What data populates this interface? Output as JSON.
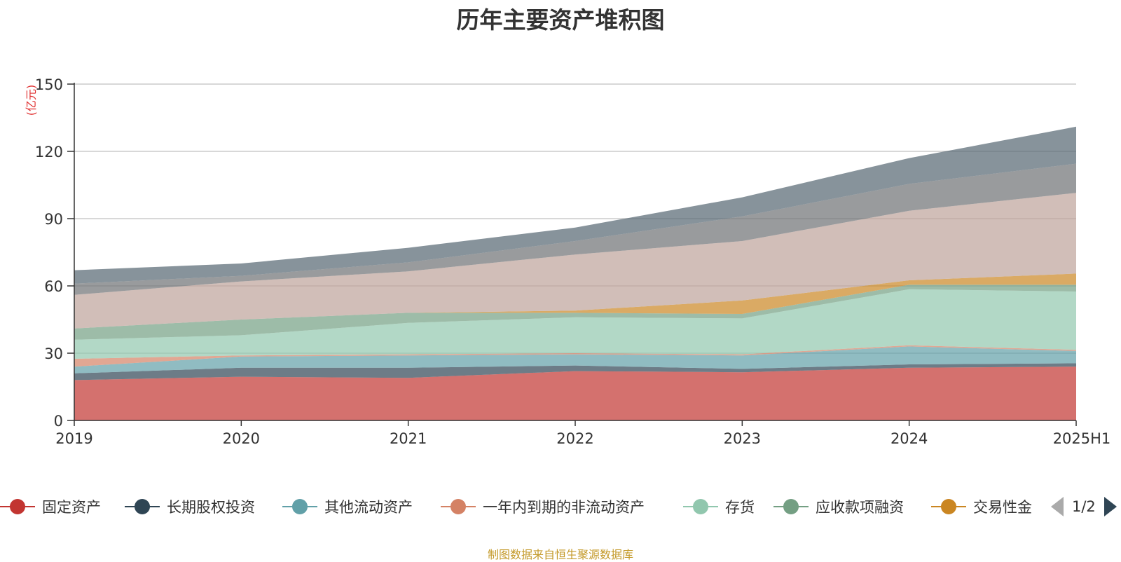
{
  "chart_data": {
    "type": "area",
    "title": "历年主要资产堆积图",
    "unit_label": "(亿元)",
    "stacked": true,
    "categories": [
      "2019",
      "2020",
      "2021",
      "2022",
      "2023",
      "2024",
      "2025H1"
    ],
    "yticks": [
      "0",
      "30",
      "60",
      "90",
      "120",
      "150"
    ],
    "ylim": [
      0,
      150
    ],
    "grid": true,
    "series": [
      {
        "name": "固定资产",
        "color": "#c23531",
        "values": [
          18,
          19.5,
          19,
          22,
          21.5,
          23.5,
          24
        ]
      },
      {
        "name": "长期股权投资",
        "color": "#2f4554",
        "values": [
          3,
          4,
          4.5,
          2.5,
          1.5,
          1.5,
          1.5
        ]
      },
      {
        "name": "其他流动资产",
        "color": "#61a0a8",
        "values": [
          3,
          5,
          5.5,
          5,
          6,
          8,
          5.5
        ]
      },
      {
        "name": "一年内到期的非流动资产",
        "color": "#d48265",
        "values": [
          3.5,
          0.5,
          0.5,
          0.5,
          0.5,
          0.5,
          0.5
        ]
      },
      {
        "name": "存货",
        "color": "#91c7ae",
        "values": [
          8.5,
          9,
          14,
          16,
          16,
          25,
          26
        ]
      },
      {
        "name": "应收款项融资",
        "color": "#749f83",
        "values": [
          5,
          7,
          4.5,
          2,
          2,
          2,
          3
        ]
      },
      {
        "name": "交易性金",
        "color": "#ca8622",
        "values": [
          0,
          0,
          0,
          1,
          6,
          2,
          5
        ]
      },
      {
        "name": "",
        "color": "#bda29a",
        "values": [
          15,
          17,
          18.5,
          25,
          26.5,
          31,
          36
        ]
      },
      {
        "name": "",
        "color": "#6e7074",
        "values": [
          5,
          2.5,
          4,
          6,
          11,
          12,
          13
        ]
      },
      {
        "name": "",
        "color": "#546570",
        "values": [
          6,
          5.5,
          6.5,
          6,
          8.5,
          11.5,
          16.5
        ]
      }
    ],
    "legend_position": "bottom",
    "legend_page": "1/2"
  },
  "source_note": "制图数据来自恒生聚源数据库"
}
